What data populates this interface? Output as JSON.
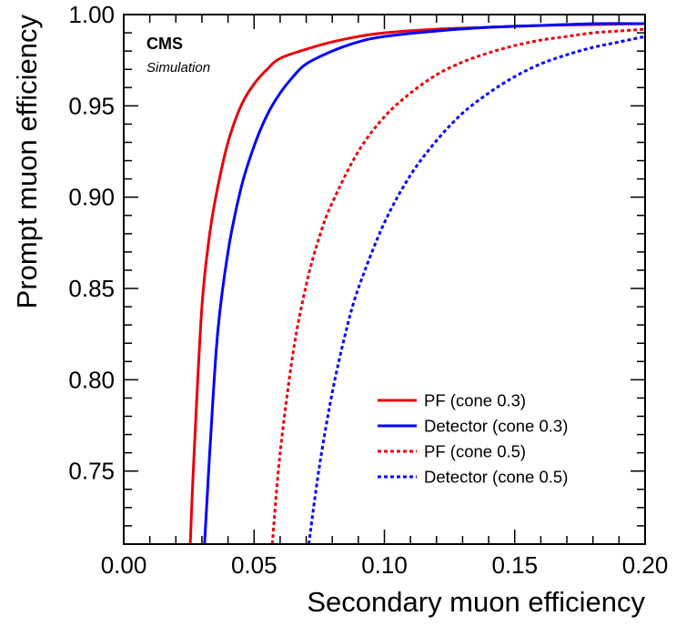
{
  "chart_data": {
    "type": "line",
    "xlabel": "Secondary muon efficiency",
    "ylabel": "Prompt muon efficiency",
    "xlim": [
      0.0,
      0.2
    ],
    "ylim": [
      0.71,
      1.0
    ],
    "x_ticks": [
      "0.00",
      "0.05",
      "0.10",
      "0.15",
      "0.20"
    ],
    "y_ticks": [
      "0.75",
      "0.80",
      "0.85",
      "0.90",
      "0.95",
      "1.00"
    ],
    "x_tick_values": [
      0.0,
      0.05,
      0.1,
      0.15,
      0.2
    ],
    "y_tick_values": [
      0.75,
      0.8,
      0.85,
      0.9,
      0.95,
      1.0
    ],
    "grid": false,
    "legend_position": "bottom-right",
    "annotations": {
      "experiment": "CMS",
      "status": "Simulation"
    },
    "series": [
      {
        "name": "PF (cone 0.3)",
        "color": "#e8000b",
        "dash": "solid",
        "x": [
          0.0255,
          0.027,
          0.03,
          0.033,
          0.036,
          0.04,
          0.045,
          0.05,
          0.055,
          0.06,
          0.07,
          0.08,
          0.09,
          0.1,
          0.12,
          0.14,
          0.16,
          0.18,
          0.2
        ],
        "y": [
          0.71,
          0.76,
          0.84,
          0.88,
          0.905,
          0.93,
          0.95,
          0.962,
          0.97,
          0.976,
          0.981,
          0.985,
          0.988,
          0.99,
          0.992,
          0.993,
          0.994,
          0.9945,
          0.995
        ]
      },
      {
        "name": "Detector (cone 0.3)",
        "color": "#0000ff",
        "dash": "solid",
        "x": [
          0.031,
          0.033,
          0.036,
          0.04,
          0.045,
          0.05,
          0.055,
          0.06,
          0.065,
          0.07,
          0.08,
          0.09,
          0.1,
          0.12,
          0.14,
          0.16,
          0.18,
          0.2
        ],
        "y": [
          0.71,
          0.76,
          0.825,
          0.87,
          0.905,
          0.928,
          0.945,
          0.957,
          0.966,
          0.973,
          0.98,
          0.985,
          0.988,
          0.991,
          0.993,
          0.994,
          0.995,
          0.995
        ]
      },
      {
        "name": "PF (cone 0.5)",
        "color": "#e8000b",
        "dash": "dotted",
        "x": [
          0.057,
          0.06,
          0.065,
          0.07,
          0.075,
          0.08,
          0.09,
          0.1,
          0.11,
          0.12,
          0.13,
          0.14,
          0.15,
          0.16,
          0.17,
          0.18,
          0.19,
          0.2
        ],
        "y": [
          0.71,
          0.76,
          0.815,
          0.852,
          0.878,
          0.897,
          0.925,
          0.944,
          0.957,
          0.967,
          0.974,
          0.979,
          0.983,
          0.986,
          0.988,
          0.99,
          0.991,
          0.992
        ]
      },
      {
        "name": "Detector (cone 0.5)",
        "color": "#0000ff",
        "dash": "dotted",
        "x": [
          0.071,
          0.075,
          0.08,
          0.085,
          0.09,
          0.1,
          0.11,
          0.12,
          0.13,
          0.14,
          0.15,
          0.16,
          0.17,
          0.18,
          0.19,
          0.2
        ],
        "y": [
          0.71,
          0.752,
          0.793,
          0.825,
          0.85,
          0.886,
          0.912,
          0.931,
          0.946,
          0.957,
          0.966,
          0.973,
          0.978,
          0.982,
          0.985,
          0.988
        ]
      }
    ]
  }
}
